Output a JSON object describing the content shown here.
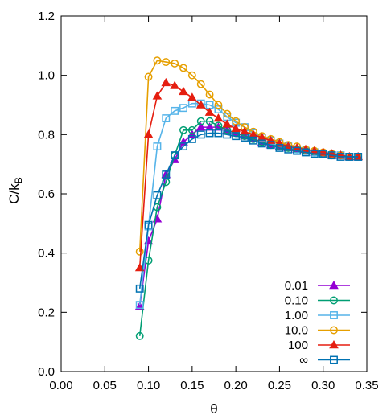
{
  "chart_data": {
    "type": "line",
    "xlabel": "θ",
    "ylabel_main": "C/k",
    "ylabel_sub": "B",
    "xlim": [
      0.0,
      0.35
    ],
    "ylim": [
      0.0,
      1.2
    ],
    "xticks": [
      0.0,
      0.05,
      0.1,
      0.15,
      0.2,
      0.25,
      0.3,
      0.35
    ],
    "xtick_labels": [
      "0.00",
      "0.05",
      "0.10",
      "0.15",
      "0.20",
      "0.25",
      "0.30",
      "0.35"
    ],
    "yticks": [
      0.0,
      0.2,
      0.4,
      0.6,
      0.8,
      1.0,
      1.2
    ],
    "ytick_labels": [
      "0.0",
      "0.2",
      "0.4",
      "0.6",
      "0.8",
      "1.0",
      "1.2"
    ],
    "grid": false,
    "legend_position": "bottom-right",
    "x": [
      0.09,
      0.1,
      0.11,
      0.12,
      0.13,
      0.14,
      0.15,
      0.16,
      0.17,
      0.18,
      0.19,
      0.2,
      0.21,
      0.22,
      0.23,
      0.24,
      0.25,
      0.26,
      0.27,
      0.28,
      0.29,
      0.3,
      0.31,
      0.32,
      0.33,
      0.34
    ],
    "series": [
      {
        "name": "0.01",
        "color": "#9400d3",
        "marker": "triangle",
        "values": [
          0.22,
          0.44,
          0.515,
          0.665,
          0.715,
          0.775,
          0.8,
          0.825,
          0.825,
          0.825,
          0.815,
          0.805,
          0.795,
          0.785,
          0.775,
          0.765,
          0.76,
          0.755,
          0.75,
          0.745,
          0.74,
          0.735,
          0.73,
          0.73,
          0.725,
          0.725
        ]
      },
      {
        "name": "0.10",
        "color": "#009e73",
        "marker": "circle",
        "values": [
          0.12,
          0.375,
          0.555,
          0.64,
          0.73,
          0.815,
          0.815,
          0.845,
          0.845,
          0.83,
          0.815,
          0.805,
          0.795,
          0.785,
          0.775,
          0.765,
          0.76,
          0.755,
          0.75,
          0.745,
          0.74,
          0.735,
          0.73,
          0.73,
          0.725,
          0.725
        ]
      },
      {
        "name": "1.00",
        "color": "#56b4e9",
        "marker": "square",
        "values": [
          0.225,
          0.49,
          0.76,
          0.855,
          0.88,
          0.89,
          0.905,
          0.905,
          0.9,
          0.885,
          0.86,
          0.84,
          0.825,
          0.805,
          0.79,
          0.78,
          0.77,
          0.76,
          0.75,
          0.745,
          0.74,
          0.735,
          0.73,
          0.73,
          0.725,
          0.725
        ]
      },
      {
        "name": "10.0",
        "color": "#e69f00",
        "marker": "circle",
        "values": [
          0.405,
          0.995,
          1.05,
          1.045,
          1.04,
          1.025,
          1.0,
          0.97,
          0.935,
          0.9,
          0.87,
          0.845,
          0.825,
          0.81,
          0.795,
          0.785,
          0.775,
          0.765,
          0.76,
          0.75,
          0.745,
          0.74,
          0.735,
          0.73,
          0.725,
          0.725
        ]
      },
      {
        "name": "100",
        "color": "#e51e10",
        "marker": "triangle",
        "values": [
          0.35,
          0.8,
          0.93,
          0.975,
          0.965,
          0.945,
          0.925,
          0.9,
          0.875,
          0.855,
          0.835,
          0.82,
          0.81,
          0.8,
          0.79,
          0.78,
          0.77,
          0.76,
          0.755,
          0.75,
          0.745,
          0.74,
          0.735,
          0.73,
          0.725,
          0.725
        ]
      },
      {
        "name": "∞",
        "color": "#0072b2",
        "marker": "square",
        "values": [
          0.28,
          0.495,
          0.595,
          0.665,
          0.73,
          0.76,
          0.785,
          0.8,
          0.805,
          0.805,
          0.8,
          0.795,
          0.79,
          0.78,
          0.77,
          0.765,
          0.755,
          0.75,
          0.745,
          0.74,
          0.735,
          0.735,
          0.73,
          0.725,
          0.725,
          0.725
        ]
      }
    ]
  }
}
